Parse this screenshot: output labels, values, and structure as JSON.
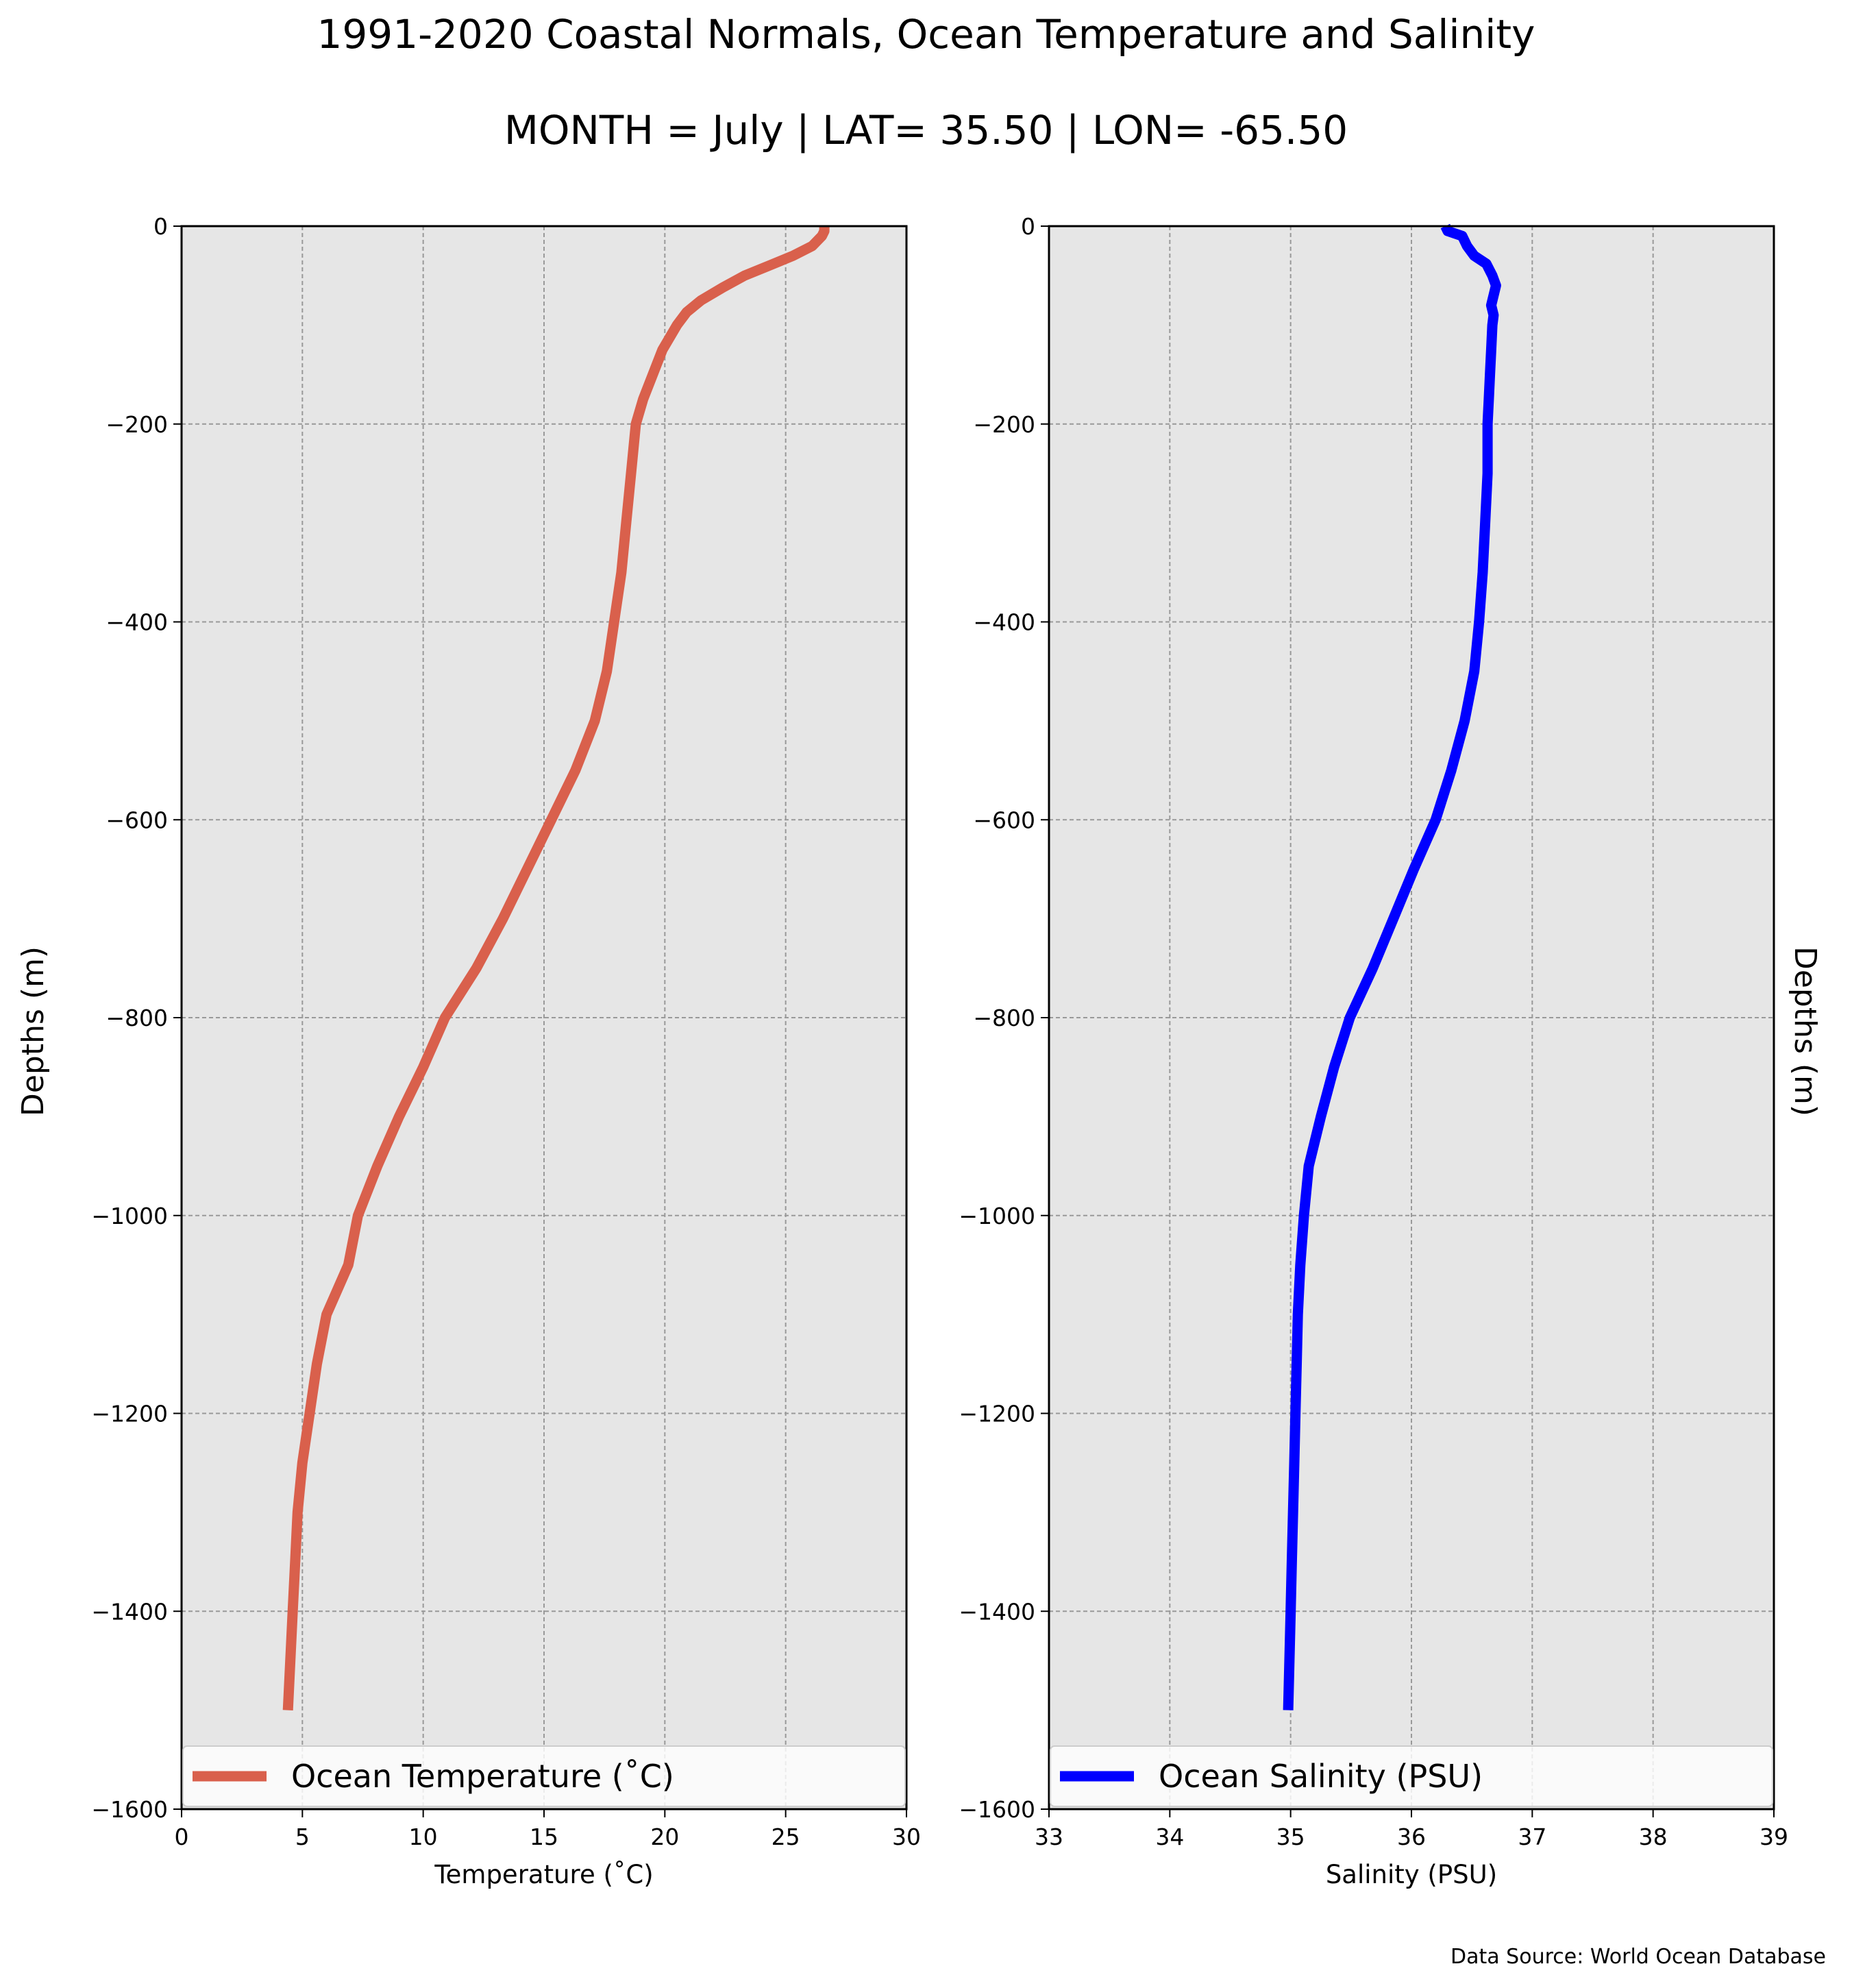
{
  "figure": {
    "title_line1": "1991-2020 Coastal Normals, Ocean Temperature and Salinity",
    "title_line2": "MONTH = July | LAT= 35.50 | LON= -65.50",
    "source": "Data Source: World Ocean Database"
  },
  "colors": {
    "plot_background": "#e6e6e6",
    "grid": "#999999",
    "temperature_line": "#d9604c",
    "salinity_line": "#0000ff"
  },
  "chart_data": [
    {
      "type": "line",
      "orientation": "profile",
      "xlabel": "Temperature ($^\\circ$C)",
      "xlabel_display": "Temperature (˚C)",
      "ylabel": "Depths (m)",
      "xlim": [
        0,
        30
      ],
      "ylim": [
        -1600,
        0
      ],
      "xticks": [
        0,
        5,
        10,
        15,
        20,
        25,
        30
      ],
      "xtick_labels": [
        "0",
        "5",
        "10",
        "15",
        "20",
        "25",
        "30"
      ],
      "yticks": [
        0,
        -200,
        -400,
        -600,
        -800,
        -1000,
        -1200,
        -1400,
        -1600
      ],
      "ytick_labels": [
        "0",
        "−200",
        "−400",
        "−600",
        "−800",
        "−1000",
        "−1200",
        "−1400",
        "−1600"
      ],
      "grid": true,
      "legend_position": "lower center",
      "series": [
        {
          "name": "Ocean Temperature (˚C)",
          "color": "#d9604c",
          "points": [
            [
              26.6,
              0
            ],
            [
              26.6,
              -5
            ],
            [
              26.5,
              -10
            ],
            [
              26.1,
              -20
            ],
            [
              25.3,
              -30
            ],
            [
              24.3,
              -40
            ],
            [
              23.3,
              -50
            ],
            [
              22.4,
              -62
            ],
            [
              21.5,
              -75
            ],
            [
              20.9,
              -87
            ],
            [
              20.5,
              -100
            ],
            [
              19.9,
              -125
            ],
            [
              19.5,
              -150
            ],
            [
              19.1,
              -175
            ],
            [
              18.8,
              -200
            ],
            [
              18.6,
              -250
            ],
            [
              18.4,
              -300
            ],
            [
              18.2,
              -350
            ],
            [
              17.9,
              -400
            ],
            [
              17.6,
              -450
            ],
            [
              17.1,
              -500
            ],
            [
              16.3,
              -550
            ],
            [
              15.3,
              -600
            ],
            [
              14.3,
              -650
            ],
            [
              13.3,
              -700
            ],
            [
              12.2,
              -750
            ],
            [
              10.9,
              -800
            ],
            [
              10.0,
              -850
            ],
            [
              9.0,
              -900
            ],
            [
              8.1,
              -950
            ],
            [
              7.3,
              -1000
            ],
            [
              6.9,
              -1050
            ],
            [
              6.0,
              -1100
            ],
            [
              5.6,
              -1150
            ],
            [
              5.3,
              -1200
            ],
            [
              5.0,
              -1250
            ],
            [
              4.8,
              -1300
            ],
            [
              4.7,
              -1350
            ],
            [
              4.6,
              -1400
            ],
            [
              4.5,
              -1450
            ],
            [
              4.4,
              -1500
            ]
          ]
        }
      ]
    },
    {
      "type": "line",
      "orientation": "profile",
      "xlabel": "Salinity (PSU)",
      "ylabel": "Depths (m)",
      "xlim": [
        33,
        39
      ],
      "ylim": [
        -1600,
        0
      ],
      "xticks": [
        33,
        34,
        35,
        36,
        37,
        38,
        39
      ],
      "xtick_labels": [
        "33",
        "34",
        "35",
        "36",
        "37",
        "38",
        "39"
      ],
      "yticks": [
        0,
        -200,
        -400,
        -600,
        -800,
        -1000,
        -1200,
        -1400,
        -1600
      ],
      "ytick_labels": [
        "0",
        "−200",
        "−400",
        "−600",
        "−800",
        "−1000",
        "−1200",
        "−1400",
        "−1600"
      ],
      "grid": true,
      "legend_position": "lower center",
      "series": [
        {
          "name": "Ocean Salinity (PSU)",
          "color": "#0000ff",
          "points": [
            [
              36.28,
              0
            ],
            [
              36.3,
              -5
            ],
            [
              36.42,
              -10
            ],
            [
              36.46,
              -20
            ],
            [
              36.52,
              -30
            ],
            [
              36.62,
              -38
            ],
            [
              36.67,
              -50
            ],
            [
              36.7,
              -60
            ],
            [
              36.68,
              -70
            ],
            [
              36.66,
              -80
            ],
            [
              36.68,
              -90
            ],
            [
              36.67,
              -100
            ],
            [
              36.66,
              -125
            ],
            [
              36.65,
              -150
            ],
            [
              36.64,
              -175
            ],
            [
              36.63,
              -200
            ],
            [
              36.63,
              -250
            ],
            [
              36.61,
              -300
            ],
            [
              36.59,
              -350
            ],
            [
              36.56,
              -400
            ],
            [
              36.52,
              -450
            ],
            [
              36.44,
              -500
            ],
            [
              36.33,
              -550
            ],
            [
              36.2,
              -600
            ],
            [
              36.02,
              -650
            ],
            [
              35.85,
              -700
            ],
            [
              35.68,
              -750
            ],
            [
              35.49,
              -800
            ],
            [
              35.36,
              -850
            ],
            [
              35.25,
              -900
            ],
            [
              35.15,
              -950
            ],
            [
              35.11,
              -1000
            ],
            [
              35.08,
              -1050
            ],
            [
              35.06,
              -1100
            ],
            [
              35.05,
              -1150
            ],
            [
              35.04,
              -1200
            ],
            [
              35.03,
              -1250
            ],
            [
              35.02,
              -1300
            ],
            [
              35.01,
              -1350
            ],
            [
              35.0,
              -1400
            ],
            [
              34.99,
              -1450
            ],
            [
              34.98,
              -1500
            ]
          ]
        }
      ]
    }
  ]
}
